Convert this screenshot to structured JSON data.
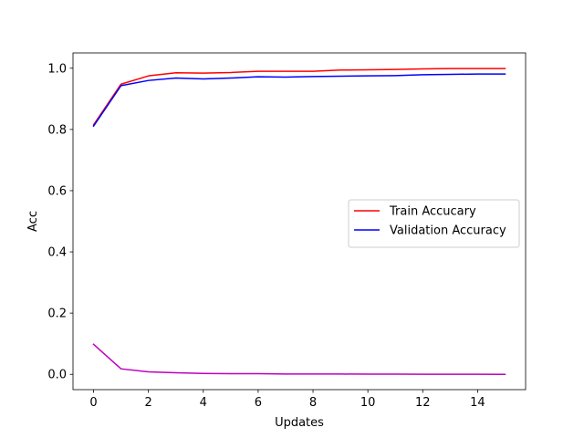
{
  "chart_data": {
    "type": "line",
    "xlabel": "Updates",
    "ylabel": "Acc",
    "xlim": [
      -0.75,
      15.75
    ],
    "ylim": [
      -0.05,
      1.05
    ],
    "xticks": [
      0,
      2,
      4,
      6,
      8,
      10,
      12,
      14
    ],
    "yticks": [
      0.0,
      0.2,
      0.4,
      0.6,
      0.8,
      1.0
    ],
    "xtick_labels": [
      "0",
      "2",
      "4",
      "6",
      "8",
      "10",
      "12",
      "14"
    ],
    "ytick_labels": [
      "0.0",
      "0.2",
      "0.4",
      "0.6",
      "0.8",
      "1.0"
    ],
    "grid": false,
    "legend_position": "center-right",
    "x": [
      0,
      1,
      2,
      3,
      4,
      5,
      6,
      7,
      8,
      9,
      10,
      11,
      12,
      13,
      14,
      15
    ],
    "series": [
      {
        "name": "Train Accucary",
        "color": "#ff0000",
        "in_legend": true,
        "values": [
          0.815,
          0.948,
          0.975,
          0.985,
          0.984,
          0.986,
          0.99,
          0.99,
          0.99,
          0.994,
          0.995,
          0.996,
          0.998,
          0.999,
          0.999,
          0.999
        ]
      },
      {
        "name": "Validation Accuracy",
        "color": "#0000ff",
        "in_legend": true,
        "values": [
          0.811,
          0.943,
          0.96,
          0.968,
          0.965,
          0.968,
          0.972,
          0.971,
          0.973,
          0.974,
          0.975,
          0.976,
          0.979,
          0.98,
          0.981,
          0.981
        ]
      },
      {
        "color": "#bf00bf",
        "in_legend": false,
        "values": [
          0.098,
          0.018,
          0.008,
          0.005,
          0.003,
          0.002,
          0.002,
          0.001,
          0.001,
          0.001,
          0.0005,
          0.0005,
          0.0003,
          0.0002,
          0.0002,
          0.0001
        ]
      }
    ]
  }
}
